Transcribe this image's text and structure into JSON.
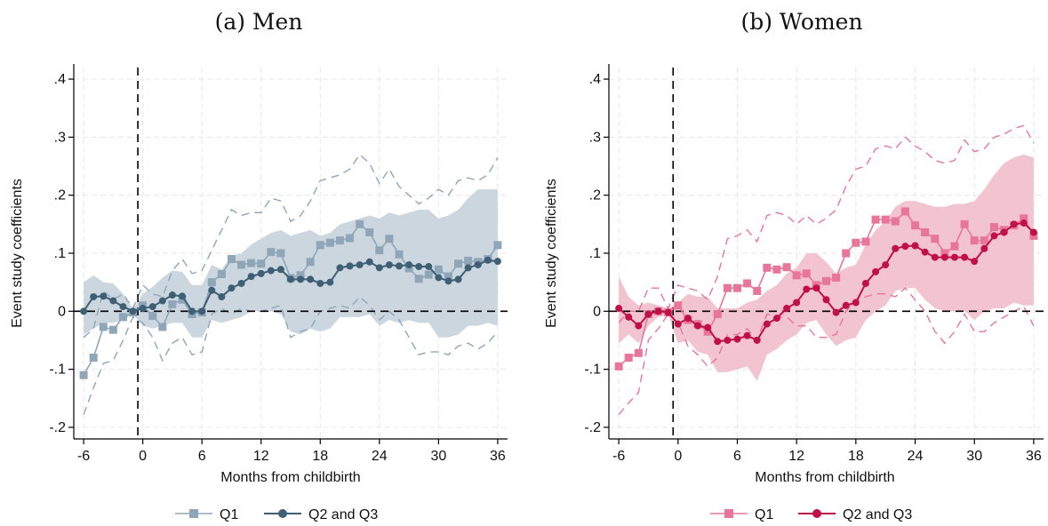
{
  "chart_data": [
    {
      "type": "line",
      "title": "(a) Men",
      "xlabel": "Months from childbirth",
      "ylabel": "Event study coefficients",
      "xlim": [
        -7,
        37
      ],
      "ylim": [
        -0.22,
        0.42
      ],
      "xticks": [
        -6,
        0,
        6,
        12,
        18,
        24,
        30,
        36
      ],
      "xtick_labels": [
        "-6",
        "0",
        "6",
        "12",
        "18",
        "24",
        "30",
        "36"
      ],
      "yticks": [
        -0.2,
        -0.1,
        0,
        0.1,
        0.2,
        0.3,
        0.4
      ],
      "ytick_labels": [
        "-.2",
        "-.1",
        "0",
        ".1",
        ".2",
        ".3",
        ".4"
      ],
      "grid": true,
      "reference_lines": {
        "x": -0.5,
        "y": 0
      },
      "legend_position": "bottom",
      "colors": {
        "q1": "#8fa6b8",
        "q23": "#3f5f75",
        "band": "#ccd6df"
      },
      "x": [
        -6,
        -5,
        -4,
        -3,
        -2,
        -1,
        0,
        1,
        2,
        3,
        4,
        5,
        6,
        7,
        8,
        9,
        10,
        11,
        12,
        13,
        14,
        15,
        16,
        17,
        18,
        19,
        20,
        21,
        22,
        23,
        24,
        25,
        26,
        27,
        28,
        29,
        30,
        31,
        32,
        33,
        34,
        35,
        36
      ],
      "series": [
        {
          "name": "Q1",
          "marker": "square",
          "values": [
            -0.11,
            -0.08,
            -0.027,
            -0.032,
            -0.01,
            -0.002,
            0.01,
            -0.008,
            -0.027,
            0.012,
            0.02,
            -0.005,
            -0.002,
            0.05,
            0.064,
            0.09,
            0.08,
            0.083,
            0.082,
            0.102,
            0.1,
            0.057,
            0.062,
            0.085,
            0.114,
            0.118,
            0.122,
            0.126,
            0.15,
            0.136,
            0.105,
            0.125,
            0.098,
            0.074,
            0.056,
            0.063,
            0.072,
            0.06,
            0.082,
            0.087,
            0.085,
            0.09,
            0.114
          ],
          "ci_low": [
            -0.178,
            -0.132,
            -0.09,
            -0.085,
            -0.05,
            -0.01,
            -0.02,
            -0.045,
            -0.085,
            -0.055,
            -0.045,
            -0.075,
            -0.07,
            -0.005,
            0.005,
            -0.005,
            0.005,
            0.0,
            0.0,
            0.005,
            0.01,
            -0.045,
            -0.035,
            -0.03,
            0.0,
            0.005,
            0.01,
            0.005,
            0.025,
            0.01,
            -0.015,
            0.0,
            -0.015,
            -0.045,
            -0.075,
            -0.07,
            -0.07,
            -0.075,
            -0.06,
            -0.055,
            -0.065,
            -0.055,
            -0.035
          ],
          "ci_high": [
            -0.045,
            -0.03,
            0.035,
            0.02,
            0.03,
            0.005,
            0.045,
            0.03,
            0.025,
            0.07,
            0.09,
            0.065,
            0.07,
            0.105,
            0.14,
            0.175,
            0.165,
            0.17,
            0.17,
            0.195,
            0.19,
            0.155,
            0.165,
            0.19,
            0.225,
            0.23,
            0.235,
            0.245,
            0.27,
            0.255,
            0.22,
            0.245,
            0.215,
            0.2,
            0.185,
            0.195,
            0.21,
            0.2,
            0.225,
            0.23,
            0.225,
            0.235,
            0.265
          ]
        },
        {
          "name": "Q2 and Q3",
          "marker": "circle",
          "values": [
            0.0,
            0.025,
            0.026,
            0.018,
            0.008,
            0.0,
            0.005,
            0.008,
            0.018,
            0.028,
            0.026,
            0.0,
            0.0,
            0.036,
            0.025,
            0.04,
            0.048,
            0.06,
            0.065,
            0.07,
            0.072,
            0.055,
            0.055,
            0.055,
            0.048,
            0.05,
            0.075,
            0.078,
            0.08,
            0.085,
            0.075,
            0.08,
            0.078,
            0.08,
            0.077,
            0.077,
            0.058,
            0.052,
            0.055,
            0.075,
            0.08,
            0.088,
            0.086
          ],
          "ci_low": [
            -0.04,
            -0.03,
            -0.02,
            -0.02,
            -0.015,
            -0.005,
            -0.025,
            -0.03,
            -0.025,
            -0.02,
            -0.02,
            -0.045,
            -0.045,
            -0.015,
            -0.02,
            -0.015,
            -0.01,
            0.0,
            0.0,
            0.0,
            -0.005,
            -0.035,
            -0.04,
            -0.03,
            -0.035,
            -0.03,
            -0.01,
            -0.01,
            -0.01,
            -0.005,
            -0.025,
            -0.015,
            -0.02,
            -0.015,
            -0.02,
            -0.02,
            -0.045,
            -0.045,
            -0.04,
            -0.025,
            -0.025,
            -0.02,
            -0.025
          ],
          "ci_high": [
            0.05,
            0.062,
            0.05,
            0.048,
            0.03,
            0.005,
            0.03,
            0.042,
            0.058,
            0.07,
            0.068,
            0.045,
            0.045,
            0.08,
            0.072,
            0.095,
            0.1,
            0.115,
            0.125,
            0.135,
            0.14,
            0.13,
            0.135,
            0.14,
            0.13,
            0.135,
            0.15,
            0.155,
            0.16,
            0.165,
            0.16,
            0.17,
            0.165,
            0.17,
            0.175,
            0.175,
            0.16,
            0.165,
            0.175,
            0.195,
            0.21,
            0.21,
            0.21
          ]
        }
      ]
    },
    {
      "type": "line",
      "title": "(b) Women",
      "xlabel": "Months from childbirth",
      "ylabel": "Event study coefficients",
      "xlim": [
        -7,
        37
      ],
      "ylim": [
        -0.22,
        0.42
      ],
      "xticks": [
        -6,
        0,
        6,
        12,
        18,
        24,
        30,
        36
      ],
      "xtick_labels": [
        "-6",
        "0",
        "6",
        "12",
        "18",
        "24",
        "30",
        "36"
      ],
      "yticks": [
        -0.2,
        -0.1,
        0,
        0.1,
        0.2,
        0.3,
        0.4
      ],
      "ytick_labels": [
        "-.2",
        "-.1",
        "0",
        ".1",
        ".2",
        ".3",
        ".4"
      ],
      "grid": true,
      "reference_lines": {
        "x": -0.5,
        "y": 0
      },
      "legend_position": "bottom",
      "colors": {
        "q1": "#e8769a",
        "q23": "#c0104a",
        "band": "#f2c3d0"
      },
      "x": [
        -6,
        -5,
        -4,
        -3,
        -2,
        -1,
        0,
        1,
        2,
        3,
        4,
        5,
        6,
        7,
        8,
        9,
        10,
        11,
        12,
        13,
        14,
        15,
        16,
        17,
        18,
        19,
        20,
        21,
        22,
        23,
        24,
        25,
        26,
        27,
        28,
        29,
        30,
        31,
        32,
        33,
        34,
        35,
        36
      ],
      "series": [
        {
          "name": "Q1",
          "marker": "square",
          "values": [
            -0.095,
            -0.08,
            -0.072,
            -0.005,
            0.0,
            -0.002,
            0.01,
            -0.015,
            -0.022,
            -0.035,
            -0.005,
            0.04,
            0.04,
            0.048,
            0.035,
            0.075,
            0.072,
            0.076,
            0.062,
            0.065,
            0.045,
            0.052,
            0.058,
            0.1,
            0.118,
            0.12,
            0.158,
            0.158,
            0.155,
            0.172,
            0.148,
            0.136,
            0.125,
            0.1,
            0.112,
            0.15,
            0.122,
            0.122,
            0.145,
            0.14,
            0.148,
            0.16,
            0.13
          ],
          "ci_low": [
            -0.178,
            -0.158,
            -0.14,
            -0.05,
            -0.03,
            -0.005,
            -0.02,
            -0.06,
            -0.075,
            -0.095,
            -0.08,
            -0.04,
            -0.04,
            -0.03,
            -0.05,
            -0.005,
            -0.01,
            -0.01,
            -0.025,
            -0.025,
            -0.045,
            -0.045,
            -0.04,
            0.0,
            0.02,
            0.025,
            0.03,
            0.03,
            0.025,
            0.04,
            0.02,
            0.0,
            -0.035,
            -0.055,
            -0.035,
            -0.005,
            -0.035,
            -0.035,
            -0.02,
            -0.01,
            0.0,
            0.008,
            -0.025
          ],
          "ci_high": [
            -0.02,
            0.0,
            0.0,
            0.04,
            0.04,
            0.005,
            0.045,
            0.04,
            0.035,
            0.02,
            0.06,
            0.125,
            0.13,
            0.14,
            0.12,
            0.165,
            0.17,
            0.165,
            0.15,
            0.165,
            0.15,
            0.16,
            0.175,
            0.215,
            0.245,
            0.25,
            0.28,
            0.285,
            0.28,
            0.3,
            0.285,
            0.275,
            0.26,
            0.255,
            0.26,
            0.295,
            0.275,
            0.28,
            0.3,
            0.305,
            0.315,
            0.32,
            0.29
          ]
        },
        {
          "name": "Q2 and Q3",
          "marker": "circle",
          "values": [
            0.005,
            -0.01,
            -0.025,
            -0.005,
            0.0,
            -0.002,
            -0.022,
            -0.012,
            -0.025,
            -0.028,
            -0.052,
            -0.05,
            -0.048,
            -0.042,
            -0.05,
            -0.022,
            -0.012,
            0.005,
            0.015,
            0.038,
            0.04,
            0.02,
            -0.002,
            0.01,
            0.015,
            0.048,
            0.068,
            0.08,
            0.108,
            0.112,
            0.113,
            0.102,
            0.093,
            0.093,
            0.093,
            0.093,
            0.086,
            0.108,
            0.13,
            0.136,
            0.15,
            0.152,
            0.136
          ],
          "ci_low": [
            -0.055,
            -0.04,
            -0.055,
            -0.025,
            -0.01,
            -0.005,
            -0.055,
            -0.05,
            -0.07,
            -0.075,
            -0.105,
            -0.105,
            -0.1,
            -0.095,
            -0.12,
            -0.075,
            -0.065,
            -0.05,
            -0.04,
            -0.02,
            -0.015,
            -0.04,
            -0.06,
            -0.05,
            -0.045,
            -0.015,
            0.0,
            0.01,
            0.035,
            0.04,
            0.04,
            0.02,
            0.005,
            0.0,
            0.0,
            0.0,
            -0.015,
            0.0,
            0.005,
            0.005,
            0.015,
            0.01,
            0.01
          ],
          "ci_high": [
            0.06,
            0.025,
            0.01,
            0.015,
            0.01,
            0.005,
            0.015,
            0.03,
            0.025,
            0.025,
            0.005,
            0.005,
            0.005,
            0.015,
            0.02,
            0.035,
            0.045,
            0.065,
            0.075,
            0.1,
            0.1,
            0.085,
            0.065,
            0.075,
            0.08,
            0.115,
            0.14,
            0.155,
            0.18,
            0.19,
            0.19,
            0.185,
            0.18,
            0.18,
            0.185,
            0.185,
            0.19,
            0.21,
            0.235,
            0.255,
            0.265,
            0.27,
            0.265
          ]
        }
      ]
    }
  ]
}
